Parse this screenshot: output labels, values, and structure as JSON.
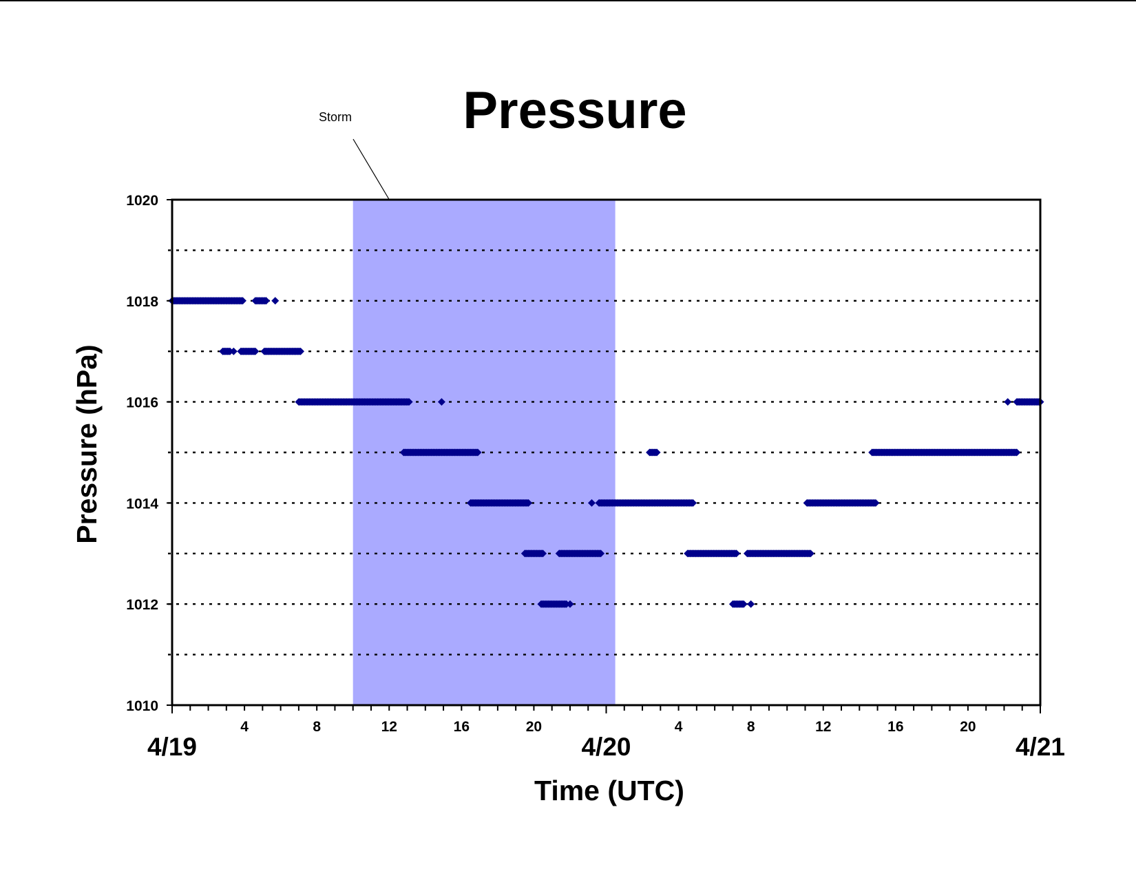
{
  "chart_data": {
    "type": "scatter",
    "title": "Pressure",
    "xlabel": "Time (UTC)",
    "ylabel": "Pressure (hPa)",
    "ylim": [
      1010,
      1020
    ],
    "yticks": [
      1010,
      1012,
      1014,
      1016,
      1018,
      1020
    ],
    "xlim_hours": [
      0,
      48
    ],
    "x_hour_ticks": [
      {
        "hour": 4,
        "label": "4"
      },
      {
        "hour": 8,
        "label": "8"
      },
      {
        "hour": 12,
        "label": "12"
      },
      {
        "hour": 16,
        "label": "16"
      },
      {
        "hour": 20,
        "label": "20"
      },
      {
        "hour": 28,
        "label": "4"
      },
      {
        "hour": 32,
        "label": "8"
      },
      {
        "hour": 36,
        "label": "12"
      },
      {
        "hour": 40,
        "label": "16"
      },
      {
        "hour": 44,
        "label": "20"
      }
    ],
    "x_date_labels": [
      {
        "hour": 0,
        "label": "4/19"
      },
      {
        "hour": 24,
        "label": "4/20"
      },
      {
        "hour": 48,
        "label": "4/21"
      }
    ],
    "grid": "horizontal dotted at every 1 hPa",
    "marker_color": "#00008b",
    "shaded_region": {
      "label": "Storm",
      "x_start_hours": 10,
      "x_end_hours": 24.5,
      "color": "#aaaaff"
    },
    "series": [
      {
        "segments": [
          {
            "y": 1018,
            "x_start": 0.0,
            "x_end": 3.9
          },
          {
            "y": 1018,
            "x_start": 4.6,
            "x_end": 5.2
          },
          {
            "y": 1018,
            "x_start": 5.7,
            "x_end": 5.7
          },
          {
            "y": 1017,
            "x_start": 2.8,
            "x_end": 3.2
          },
          {
            "y": 1017,
            "x_start": 3.4,
            "x_end": 3.4
          },
          {
            "y": 1017,
            "x_start": 3.8,
            "x_end": 4.6
          },
          {
            "y": 1017,
            "x_start": 5.1,
            "x_end": 7.1
          },
          {
            "y": 1016,
            "x_start": 7.0,
            "x_end": 13.1
          },
          {
            "y": 1016,
            "x_start": 14.9,
            "x_end": 14.9
          },
          {
            "y": 1016,
            "x_start": 46.2,
            "x_end": 46.2
          },
          {
            "y": 1016,
            "x_start": 46.7,
            "x_end": 48.0
          },
          {
            "y": 1015,
            "x_start": 12.8,
            "x_end": 16.9
          },
          {
            "y": 1015,
            "x_start": 26.4,
            "x_end": 26.8
          },
          {
            "y": 1015,
            "x_start": 38.7,
            "x_end": 46.7
          },
          {
            "y": 1014,
            "x_start": 16.5,
            "x_end": 19.7
          },
          {
            "y": 1014,
            "x_start": 23.2,
            "x_end": 23.2
          },
          {
            "y": 1014,
            "x_start": 23.6,
            "x_end": 28.8
          },
          {
            "y": 1014,
            "x_start": 35.1,
            "x_end": 38.9
          },
          {
            "y": 1013,
            "x_start": 19.5,
            "x_end": 20.5
          },
          {
            "y": 1013,
            "x_start": 21.4,
            "x_end": 23.7
          },
          {
            "y": 1013,
            "x_start": 28.5,
            "x_end": 31.2
          },
          {
            "y": 1013,
            "x_start": 31.8,
            "x_end": 35.3
          },
          {
            "y": 1012,
            "x_start": 20.4,
            "x_end": 21.8
          },
          {
            "y": 1012,
            "x_start": 22.0,
            "x_end": 22.0
          },
          {
            "y": 1012,
            "x_start": 31.0,
            "x_end": 31.6
          },
          {
            "y": 1012,
            "x_start": 32.0,
            "x_end": 32.0
          }
        ]
      }
    ]
  }
}
